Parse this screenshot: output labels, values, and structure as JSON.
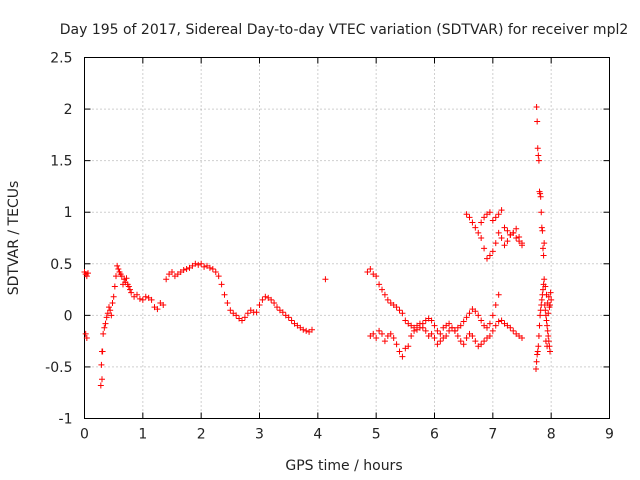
{
  "chart_data": {
    "type": "scatter",
    "title": "Day 195 of 2017, Sidereal Day-to-day VTEC variation (SDTVAR) for receiver mpl2",
    "xlabel": "GPS time / hours",
    "ylabel": "SDTVAR / TECUs",
    "xlim": [
      0,
      9
    ],
    "ylim": [
      -1,
      2.5
    ],
    "xticks": [
      0,
      1,
      2,
      3,
      4,
      5,
      6,
      7,
      8,
      9
    ],
    "yticks": [
      -1,
      -0.5,
      0,
      0.5,
      1,
      1.5,
      2,
      2.5
    ],
    "xtick_labels": [
      "0",
      "1",
      "2",
      "3",
      "4",
      "5",
      "6",
      "7",
      "8",
      "9"
    ],
    "ytick_labels": [
      "-1",
      "-0.5",
      "0",
      "0.5",
      "1",
      "1.5",
      "2",
      "2.5"
    ],
    "grid": true,
    "marker": "+",
    "color": "#ff0000",
    "series": [
      {
        "name": "SDTVAR",
        "x": [
          0.0,
          0.02,
          0.04,
          0.06,
          0.02,
          0.04,
          0.28,
          0.3,
          0.29,
          0.31,
          0.3,
          0.32,
          0.34,
          0.36,
          0.38,
          0.4,
          0.42,
          0.44,
          0.46,
          0.48,
          0.5,
          0.52,
          0.54,
          0.56,
          0.58,
          0.6,
          0.62,
          0.64,
          0.66,
          0.68,
          0.7,
          0.72,
          0.74,
          0.76,
          0.78,
          0.8,
          0.85,
          0.9,
          0.95,
          1.0,
          1.05,
          1.1,
          1.15,
          1.2,
          1.25,
          1.3,
          1.35,
          1.4,
          1.45,
          1.5,
          1.55,
          1.6,
          1.65,
          1.7,
          1.75,
          1.8,
          1.85,
          1.9,
          1.95,
          2.0,
          2.05,
          2.1,
          2.15,
          2.2,
          2.25,
          2.3,
          2.35,
          2.4,
          2.45,
          2.5,
          2.55,
          2.6,
          2.65,
          2.7,
          2.75,
          2.8,
          2.85,
          2.9,
          2.95,
          3.0,
          3.05,
          3.1,
          3.15,
          3.2,
          3.25,
          3.3,
          3.35,
          3.4,
          3.45,
          3.5,
          3.55,
          3.6,
          3.65,
          3.7,
          3.75,
          3.8,
          3.85,
          3.9,
          4.13,
          4.85,
          4.9,
          4.95,
          5.0,
          5.05,
          5.1,
          5.15,
          5.2,
          5.25,
          5.3,
          5.35,
          5.4,
          5.45,
          5.5,
          5.55,
          5.6,
          5.65,
          5.7,
          5.75,
          5.8,
          5.85,
          5.9,
          5.95,
          6.0,
          6.05,
          6.1,
          6.15,
          6.2,
          6.25,
          6.3,
          6.35,
          6.4,
          6.45,
          6.5,
          6.55,
          6.6,
          6.65,
          6.7,
          6.75,
          6.8,
          6.85,
          6.9,
          6.95,
          7.0,
          7.05,
          7.1,
          4.9,
          4.95,
          5.0,
          5.05,
          5.1,
          5.15,
          5.2,
          5.25,
          5.3,
          5.35,
          5.4,
          5.45,
          5.5,
          5.55,
          5.6,
          5.65,
          5.7,
          5.75,
          5.8,
          5.85,
          5.9,
          5.95,
          6.0,
          6.05,
          6.1,
          6.15,
          6.2,
          6.25,
          6.3,
          6.35,
          6.4,
          6.45,
          6.5,
          6.55,
          6.6,
          6.65,
          6.7,
          6.75,
          6.8,
          6.85,
          6.9,
          6.95,
          7.0,
          7.05,
          7.1,
          7.15,
          7.2,
          7.25,
          7.3,
          7.35,
          7.4,
          7.45,
          7.5,
          6.55,
          6.6,
          6.65,
          6.7,
          6.75,
          6.8,
          6.85,
          6.9,
          6.95,
          7.0,
          7.05,
          7.1,
          7.15,
          7.2,
          7.25,
          7.3,
          7.35,
          7.4,
          7.45,
          7.5,
          6.8,
          6.85,
          6.9,
          6.95,
          7.0,
          7.05,
          7.1,
          7.15,
          7.2,
          7.25,
          7.3,
          7.35,
          7.4,
          7.45,
          7.5,
          7.75,
          7.76,
          7.77,
          7.78,
          7.79,
          7.8,
          7.81,
          7.82,
          7.83,
          7.84,
          7.85,
          7.86,
          7.87,
          7.88,
          7.74,
          7.75,
          7.76,
          7.77,
          7.78,
          7.79,
          7.8,
          7.81,
          7.82,
          7.83,
          7.84,
          7.85,
          7.86,
          7.87,
          7.88,
          7.89,
          7.9,
          7.91,
          7.92,
          7.93,
          7.94,
          7.95,
          7.96,
          7.97,
          7.98,
          7.9,
          7.92,
          7.94,
          7.96,
          7.98,
          8.0,
          7.91,
          7.93,
          7.95,
          7.97,
          7.99
        ],
        "y": [
          0.42,
          0.4,
          0.38,
          0.41,
          -0.18,
          -0.22,
          -0.68,
          -0.62,
          -0.48,
          -0.35,
          -0.35,
          -0.18,
          -0.12,
          -0.08,
          -0.02,
          0.02,
          0.08,
          0.05,
          0.0,
          0.12,
          0.18,
          0.28,
          0.38,
          0.48,
          0.45,
          0.42,
          0.4,
          0.38,
          0.3,
          0.35,
          0.32,
          0.36,
          0.3,
          0.28,
          0.25,
          0.22,
          0.18,
          0.2,
          0.16,
          0.15,
          0.18,
          0.17,
          0.15,
          0.08,
          0.06,
          0.12,
          0.1,
          0.35,
          0.4,
          0.42,
          0.38,
          0.4,
          0.42,
          0.44,
          0.45,
          0.46,
          0.48,
          0.5,
          0.49,
          0.5,
          0.47,
          0.48,
          0.46,
          0.45,
          0.42,
          0.38,
          0.3,
          0.2,
          0.12,
          0.05,
          0.02,
          0.0,
          -0.03,
          -0.05,
          -0.02,
          0.02,
          0.05,
          0.03,
          0.03,
          0.1,
          0.15,
          0.18,
          0.17,
          0.15,
          0.12,
          0.08,
          0.05,
          0.03,
          0.0,
          -0.02,
          -0.05,
          -0.08,
          -0.1,
          -0.12,
          -0.14,
          -0.15,
          -0.16,
          -0.14,
          0.35,
          0.42,
          0.45,
          0.4,
          0.38,
          0.3,
          0.25,
          0.2,
          0.15,
          0.12,
          0.1,
          0.08,
          0.05,
          0.02,
          -0.05,
          -0.08,
          -0.1,
          -0.12,
          -0.14,
          -0.12,
          -0.08,
          -0.05,
          -0.03,
          -0.05,
          -0.1,
          -0.15,
          -0.18,
          -0.12,
          -0.1,
          -0.08,
          -0.12,
          -0.15,
          -0.12,
          -0.1,
          -0.06,
          -0.02,
          0.02,
          0.06,
          0.04,
          0.0,
          -0.05,
          -0.1,
          -0.12,
          -0.08,
          0.0,
          0.1,
          0.2,
          -0.2,
          -0.18,
          -0.22,
          -0.15,
          -0.18,
          -0.25,
          -0.2,
          -0.18,
          -0.22,
          -0.28,
          -0.35,
          -0.4,
          -0.32,
          -0.3,
          -0.2,
          -0.15,
          -0.1,
          -0.08,
          -0.12,
          -0.15,
          -0.2,
          -0.18,
          -0.22,
          -0.28,
          -0.25,
          -0.22,
          -0.2,
          -0.15,
          -0.12,
          -0.15,
          -0.2,
          -0.25,
          -0.28,
          -0.22,
          -0.18,
          -0.2,
          -0.25,
          -0.3,
          -0.28,
          -0.25,
          -0.22,
          -0.2,
          -0.15,
          -0.1,
          -0.06,
          -0.05,
          -0.08,
          -0.1,
          -0.12,
          -0.15,
          -0.18,
          -0.2,
          -0.22,
          0.98,
          0.95,
          0.9,
          0.85,
          0.8,
          0.75,
          0.65,
          0.55,
          0.58,
          0.62,
          0.7,
          0.8,
          0.75,
          0.68,
          0.72,
          0.78,
          0.8,
          0.75,
          0.72,
          0.7,
          0.9,
          0.95,
          0.98,
          1.0,
          0.92,
          0.95,
          0.98,
          1.02,
          0.85,
          0.82,
          0.78,
          0.8,
          0.84,
          0.76,
          0.68,
          2.02,
          1.88,
          1.62,
          1.55,
          1.5,
          1.2,
          1.18,
          1.15,
          1.0,
          0.85,
          0.82,
          0.65,
          0.58,
          0.7,
          -0.52,
          -0.45,
          -0.38,
          -0.35,
          -0.3,
          -0.2,
          -0.1,
          0.0,
          0.05,
          0.1,
          0.15,
          0.2,
          0.25,
          0.3,
          0.35,
          0.1,
          0.05,
          0.0,
          -0.05,
          -0.1,
          -0.15,
          -0.2,
          -0.25,
          -0.3,
          -0.35,
          0.28,
          0.2,
          0.12,
          0.18,
          0.1,
          0.15,
          -0.25,
          -0.3,
          0.02,
          0.08,
          0.22
        ]
      }
    ]
  }
}
